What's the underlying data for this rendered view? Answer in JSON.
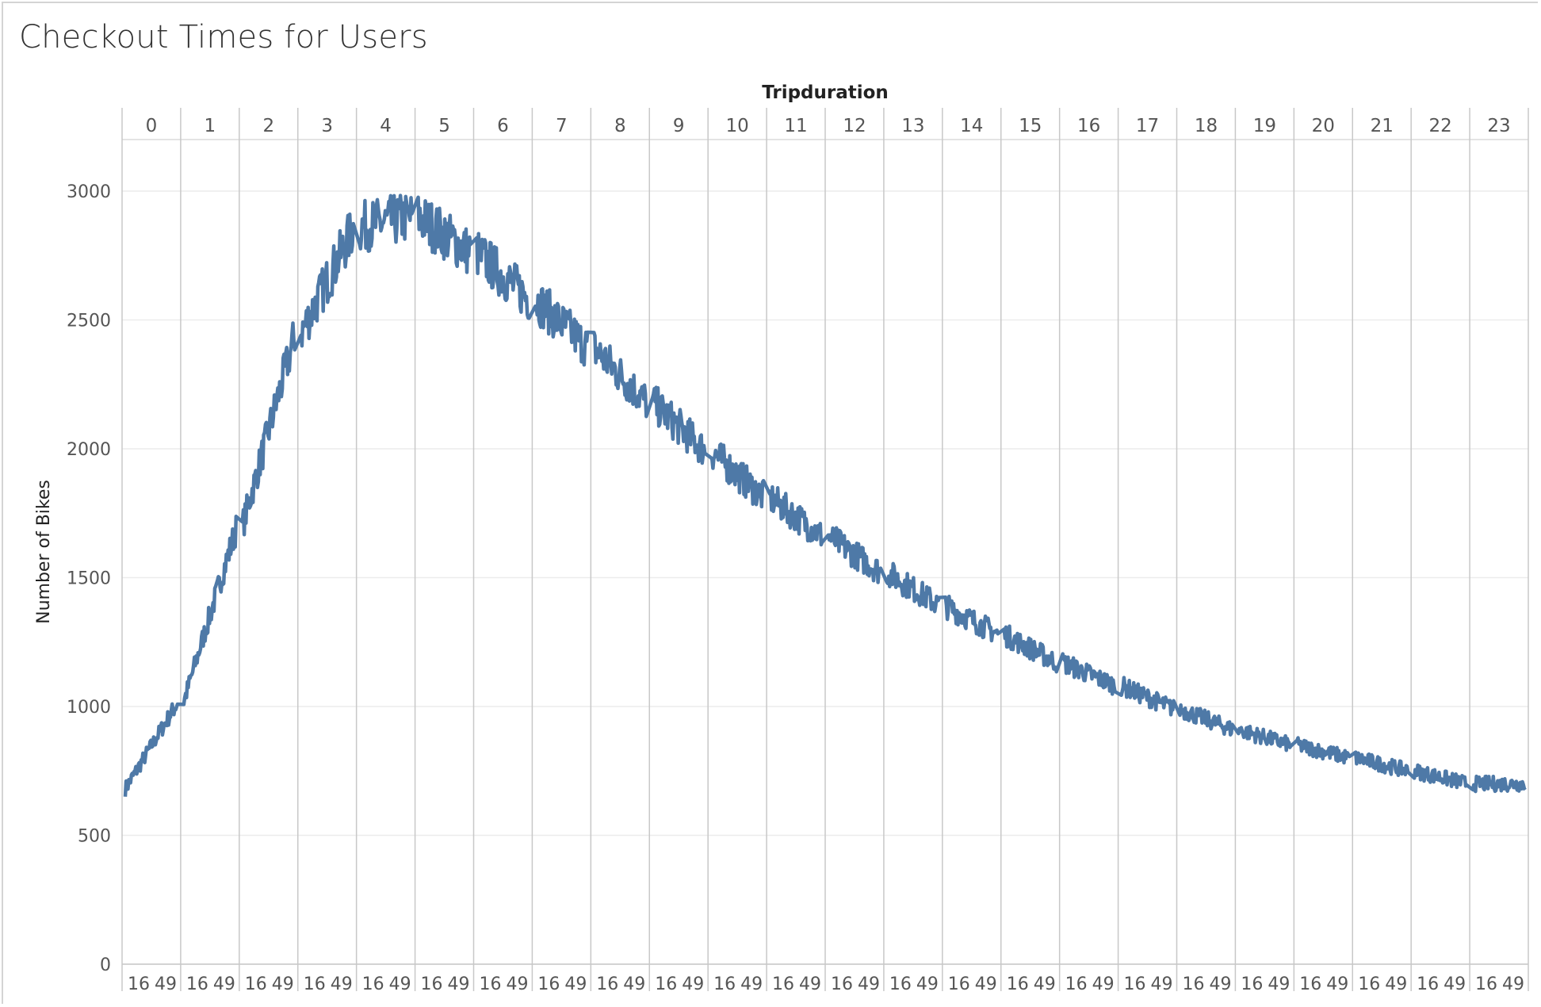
{
  "title": "Checkout Times for Users",
  "chart_data": {
    "type": "line",
    "title": "Checkout Times for Users",
    "column_header_label": "Tripduration",
    "ylabel": "Number of Bikes",
    "ylim": [
      0,
      3200
    ],
    "y_ticks": [
      0,
      500,
      1000,
      1500,
      2000,
      2500,
      3000
    ],
    "panels": [
      "0",
      "1",
      "2",
      "3",
      "4",
      "5",
      "6",
      "7",
      "8",
      "9",
      "10",
      "11",
      "12",
      "13",
      "14",
      "15",
      "16",
      "17",
      "18",
      "19",
      "20",
      "21",
      "22",
      "23"
    ],
    "minute_ticks": [
      "16",
      "49"
    ],
    "grid": true,
    "series": [
      {
        "color": "#4e79a7",
        "x_unit": "hour:minute",
        "values": [
          680,
          1020,
          1700,
          2450,
          2860,
          2900,
          2760,
          2580,
          2390,
          2180,
          1990,
          1810,
          1660,
          1520,
          1390,
          1280,
          1170,
          1080,
          990,
          910,
          850,
          800,
          750,
          700
        ]
      }
    ]
  }
}
